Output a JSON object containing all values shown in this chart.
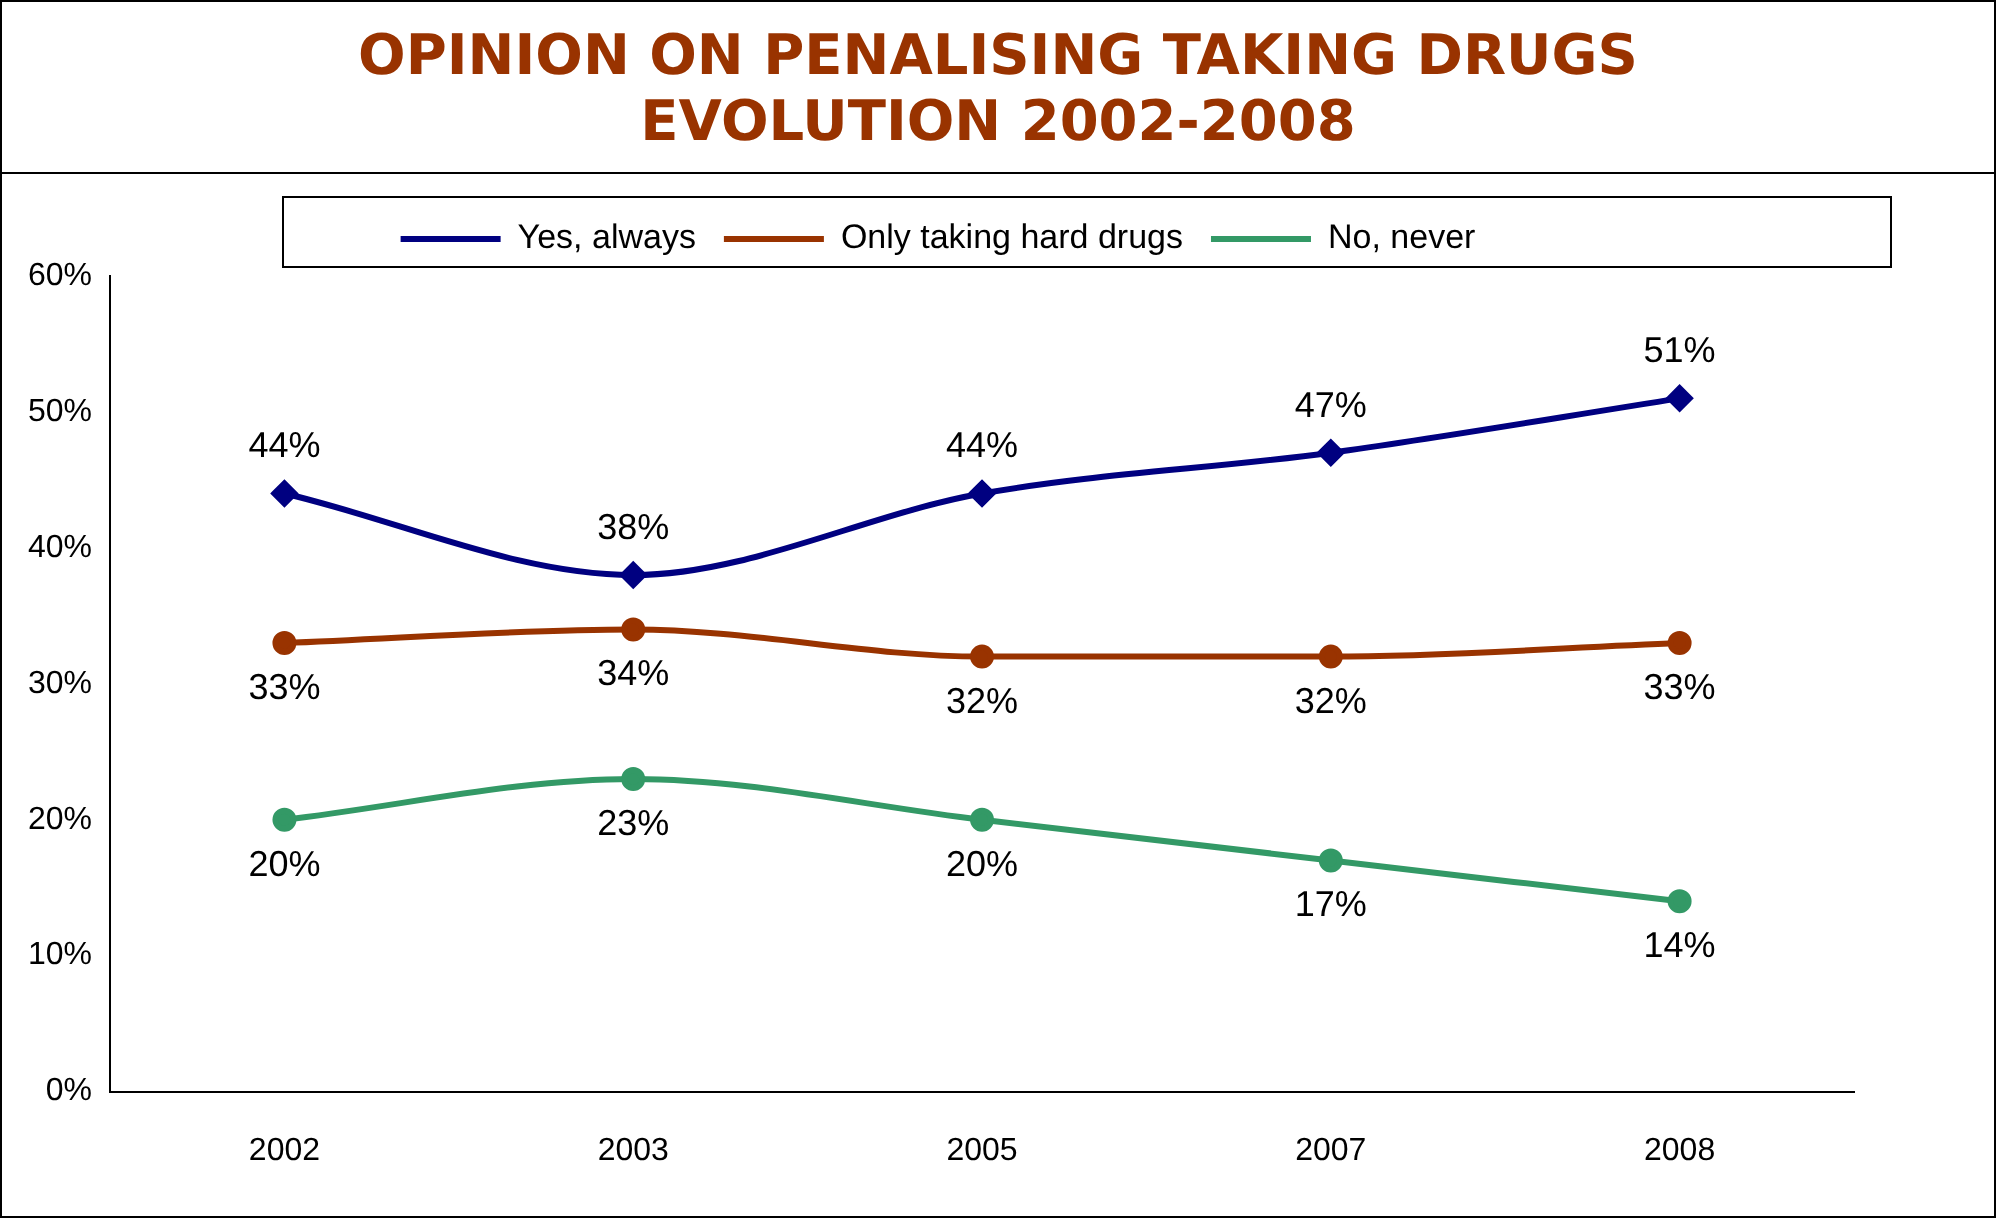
{
  "chart_data": {
    "type": "line",
    "title": "OPINION ON PENALISING TAKING DRUGS\nEVOLUTION 2002-2008",
    "categories": [
      "2002",
      "2003",
      "2005",
      "2007",
      "2008"
    ],
    "series": [
      {
        "name": "Yes, always",
        "color": "#000080",
        "marker": "diamond",
        "values": [
          44,
          38,
          44,
          47,
          51
        ],
        "value_labels": [
          "44%",
          "38%",
          "44%",
          "47%",
          "51%"
        ]
      },
      {
        "name": "Only taking hard drugs",
        "color": "#993300",
        "marker": "circle",
        "values": [
          33,
          34,
          32,
          32,
          33
        ],
        "value_labels": [
          "33%",
          "34%",
          "32%",
          "32%",
          "33%"
        ]
      },
      {
        "name": "No, never",
        "color": "#339966",
        "marker": "circle",
        "values": [
          20,
          23,
          20,
          17,
          14
        ],
        "value_labels": [
          "20%",
          "23%",
          "20%",
          "17%",
          "14%"
        ]
      }
    ],
    "ylim": [
      0,
      60
    ],
    "yticks": [
      {
        "value": 0,
        "label": "0%"
      },
      {
        "value": 10,
        "label": "10%"
      },
      {
        "value": 20,
        "label": "20%"
      },
      {
        "value": 30,
        "label": "30%"
      },
      {
        "value": 40,
        "label": "40%"
      },
      {
        "value": 50,
        "label": "50%"
      },
      {
        "value": 60,
        "label": "60%"
      }
    ],
    "legend": "top",
    "line_style": "solid"
  }
}
